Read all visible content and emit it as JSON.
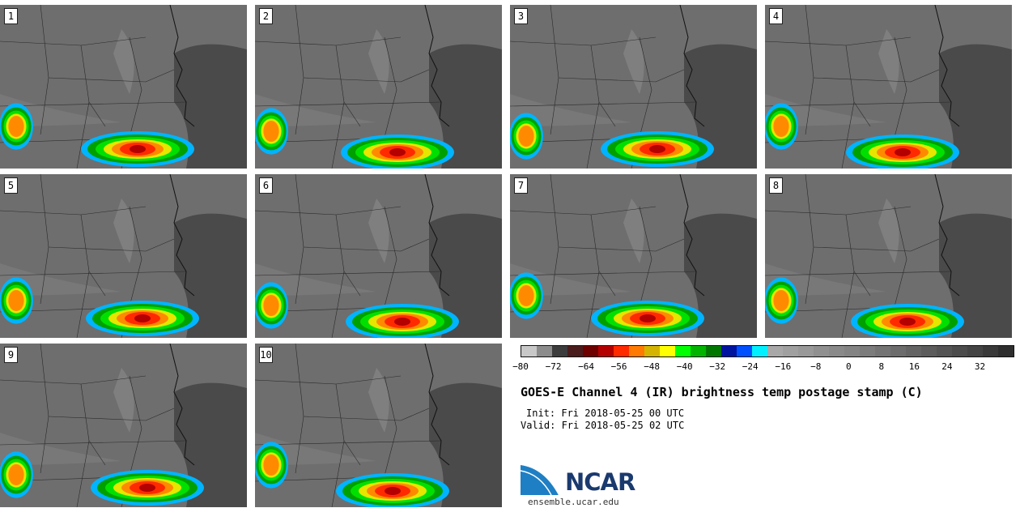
{
  "panels": [
    "1",
    "2",
    "3",
    "4",
    "5",
    "6",
    "7",
    "8",
    "9",
    "10"
  ],
  "colorbar": {
    "colors": [
      "#c8c8c8",
      "#8c8c8c",
      "#3c3c3c",
      "#4a1c1c",
      "#6e0000",
      "#b40000",
      "#ff2a00",
      "#ff7a00",
      "#d4b400",
      "#ffff00",
      "#00ff00",
      "#00b400",
      "#007800",
      "#0014a0",
      "#0050ff",
      "#00f0ff",
      "#a8a8a8",
      "#a0a0a0",
      "#999999",
      "#909090",
      "#8a8a8a",
      "#848484",
      "#7c7c7c",
      "#747474",
      "#6c6c6c",
      "#646464",
      "#5c5c5c",
      "#545454",
      "#4c4c4c",
      "#444444",
      "#3a3a3a",
      "#2e2e2e"
    ],
    "tick_labels": [
      "−80",
      "−72",
      "−64",
      "−56",
      "−48",
      "−40",
      "−32",
      "−24",
      "−16",
      "−8",
      "0",
      "8",
      "16",
      "24",
      "32"
    ],
    "tick_values": [
      -80,
      -72,
      -64,
      -56,
      -48,
      -40,
      -32,
      -24,
      -16,
      -8,
      0,
      8,
      16,
      24,
      32
    ],
    "min": -80,
    "max": 40
  },
  "title": "GOES-E Channel 4 (IR) brightness temp postage stamp (C)",
  "init": "Init: Fri 2018-05-25 00 UTC",
  "valid": "Valid: Fri 2018-05-25 02 UTC",
  "logo": {
    "text": "NCAR",
    "site": "ensemble.ucar.edu",
    "icon": "ncar-logo-icon"
  }
}
